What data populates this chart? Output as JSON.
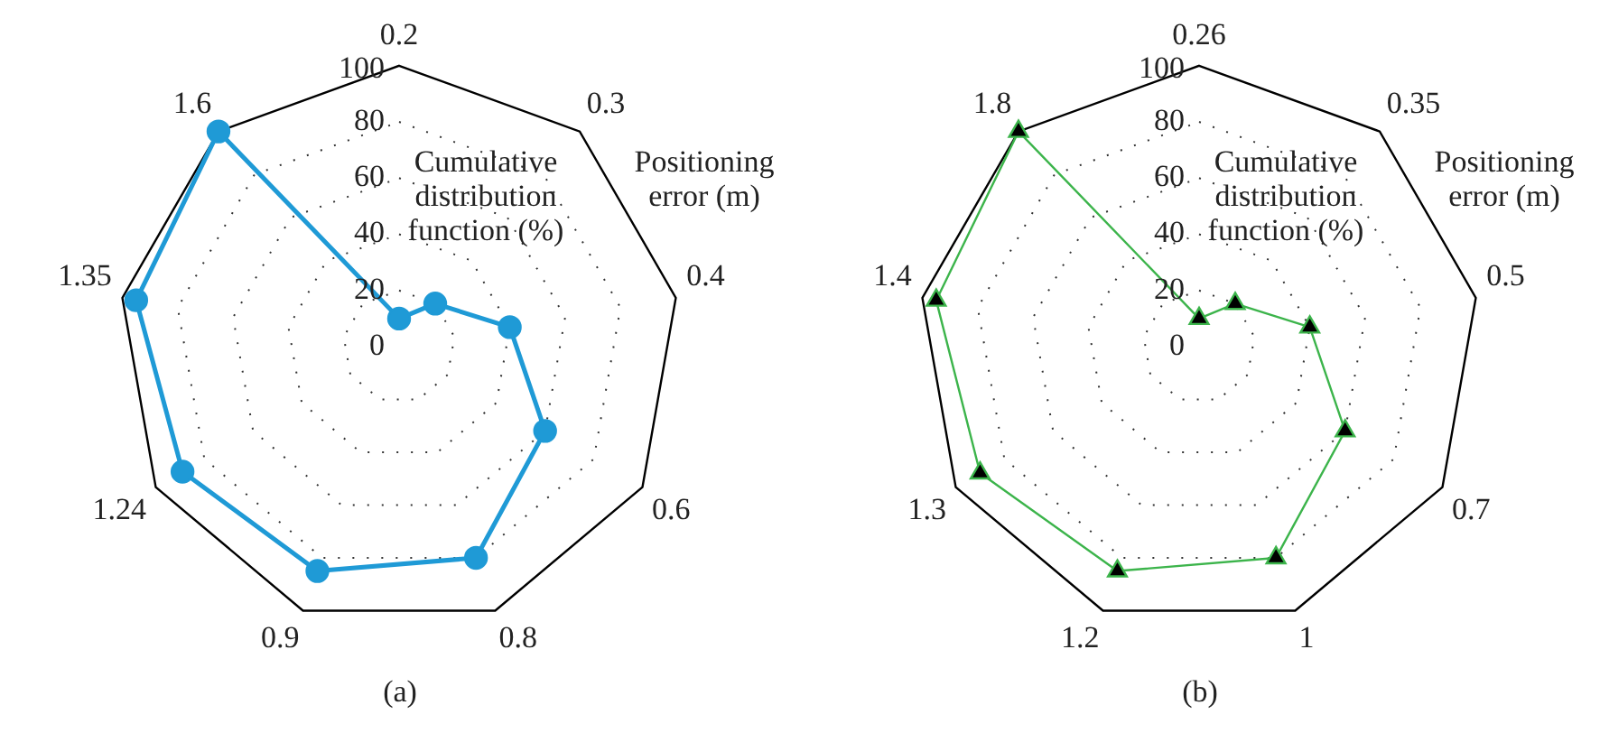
{
  "chart_data": [
    {
      "type": "radar",
      "title": "(a)",
      "xlabel": "Positioning error (m)",
      "ylabel": "Cumulative distribution function (%)",
      "categories": [
        "0.2",
        "0.3",
        "0.4",
        "0.6",
        "0.8",
        "0.9",
        "1.24",
        "1.35",
        "1.6"
      ],
      "series": [
        {
          "color": "#1f9ad6",
          "values": [
            10,
            20,
            40,
            60,
            80,
            85,
            89,
            95,
            100
          ]
        }
      ],
      "ylim": [
        0,
        100
      ],
      "yticks": [
        0,
        20,
        40,
        60,
        80,
        100
      ],
      "grid": true,
      "legend": false,
      "marker": "circle",
      "line_style": "solid"
    },
    {
      "type": "radar",
      "title": "(b)",
      "xlabel": "Positioning error (m)",
      "ylabel": "Cumulative distribution function (%)",
      "categories": [
        "0.26",
        "0.35",
        "0.5",
        "0.7",
        "1",
        "1.2",
        "1.3",
        "1.4",
        "1.8"
      ],
      "series": [
        {
          "color": "#3cb44b",
          "values": [
            10,
            20,
            40,
            60,
            80,
            85,
            90,
            95,
            100
          ]
        }
      ],
      "ylim": [
        0,
        100
      ],
      "yticks": [
        0,
        20,
        40,
        60,
        80,
        100
      ],
      "grid": true,
      "legend": false,
      "marker": "triangle",
      "line_style": "solid"
    }
  ]
}
